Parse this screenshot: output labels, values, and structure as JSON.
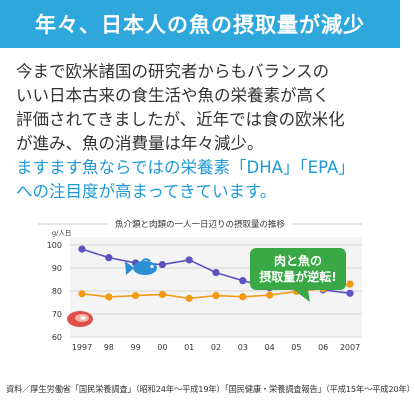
{
  "header": {
    "title": "年々、日本人の魚の摂取量が減少"
  },
  "body": {
    "lines": [
      "今まで欧米諸国の研究者からもバランスの",
      "いい日本古来の食生活や魚の栄養素が高く",
      "評価されてきましたが、近年では食の欧米化",
      "が進み、魚の消費量は年々減少。"
    ],
    "highlight_lines": [
      "ますます魚ならではの栄養素「DHA」「EPA」",
      "への注目度が高まってきています。"
    ]
  },
  "chart_data": {
    "type": "line",
    "title": "魚介類と肉類の一人一日辺りの摂取量の推移",
    "ylabel": "g/人日",
    "x": [
      "1997",
      "98",
      "99",
      "00",
      "01",
      "02",
      "03",
      "04",
      "05",
      "06",
      "2007"
    ],
    "ylim": [
      60,
      100
    ],
    "yticks": [
      60,
      70,
      80,
      90,
      100
    ],
    "grid": true,
    "series": [
      {
        "values": [
          98.2,
          94.5,
          92.2,
          91.5,
          93.5,
          88.0,
          84.5,
          81.5,
          84.0,
          80.5,
          79.0
        ],
        "color": "#5b52c0",
        "icon": "fish-icon"
      },
      {
        "values": [
          78.8,
          77.4,
          78.0,
          78.5,
          76.8,
          78.0,
          77.5,
          78.2,
          79.8,
          81.0,
          83.0
        ],
        "color": "#f39a12",
        "icon": "meat-icon"
      }
    ],
    "annotation": {
      "lines": [
        "肉と魚の",
        "摂取量が逆転!"
      ],
      "color": "#3aa845"
    }
  },
  "source": {
    "text": "資料／厚生労働省「国民栄養調査」（昭和24年〜平成19年）「国民健康・栄養調査報告」（平成15年〜平成20年）"
  }
}
